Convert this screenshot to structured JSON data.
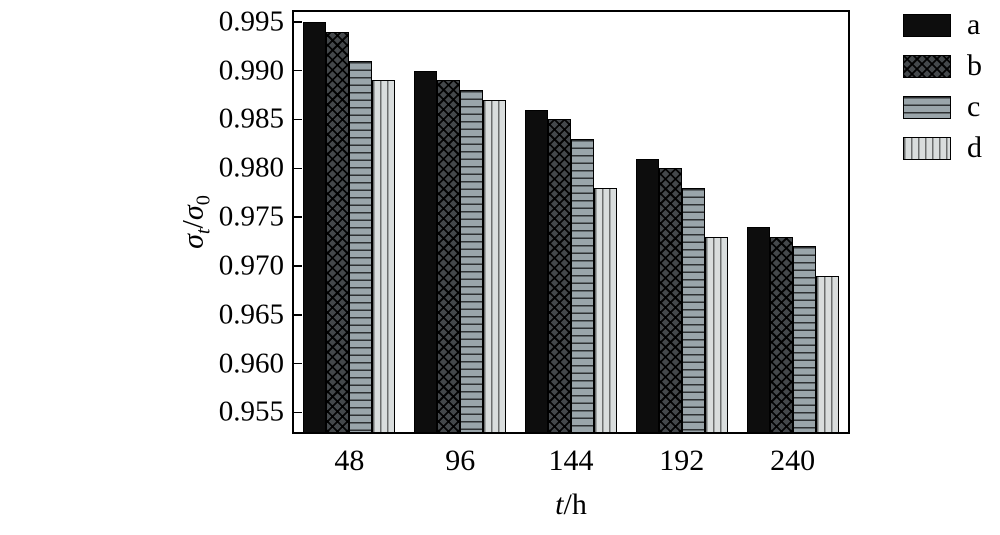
{
  "chart_data": {
    "type": "bar",
    "title": "",
    "categories": [
      "48",
      "96",
      "144",
      "192",
      "240"
    ],
    "series": [
      {
        "name": "a",
        "pattern": "solid",
        "color": "#0d0d0d",
        "values": [
          0.995,
          0.99,
          0.986,
          0.981,
          0.974
        ]
      },
      {
        "name": "b",
        "pattern": "crosshatch",
        "color": "#44484b",
        "values": [
          0.994,
          0.989,
          0.985,
          0.98,
          0.973
        ]
      },
      {
        "name": "c",
        "pattern": "hlines",
        "color": "#9aa5aa",
        "values": [
          0.991,
          0.988,
          0.983,
          0.978,
          0.972
        ]
      },
      {
        "name": "d",
        "pattern": "vlines",
        "color": "#d9dddd",
        "values": [
          0.989,
          0.987,
          0.978,
          0.973,
          0.969
        ]
      }
    ],
    "xlabel_parts": {
      "italic": "t",
      "rest": "/h"
    },
    "ylabel_parts": {
      "sigma1": "σ",
      "sub1": "t",
      "slash": "/",
      "sigma2": "σ",
      "sub2": "0"
    },
    "ylim": [
      0.953,
      0.996
    ],
    "yticks": [
      0.995,
      0.99,
      0.985,
      0.98,
      0.975,
      0.97,
      0.965,
      0.96,
      0.955
    ],
    "ytick_labels": [
      "0.995",
      "0.990",
      "0.985",
      "0.980",
      "0.975",
      "0.970",
      "0.965",
      "0.960",
      "0.955"
    ],
    "legend_position": "top-right",
    "grid": false
  }
}
